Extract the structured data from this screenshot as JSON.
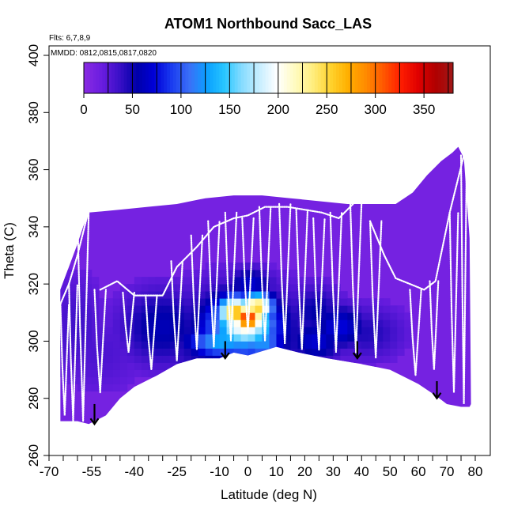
{
  "chart_data": {
    "type": "heatmap",
    "title": "ATOM1 Northbound Sacc_LAS",
    "annotations": {
      "flights": "Flts: 6,7,8,9",
      "dates": "MMDD: 0812,0815,0817,0820"
    },
    "xlabel": "Latitude (deg N)",
    "ylabel": "Theta (C)",
    "xlim": [
      -70,
      80
    ],
    "ylim": [
      260,
      400
    ],
    "x_ticks": [
      "-70",
      "-55",
      "-40",
      "-25",
      "-10",
      "0",
      "10",
      "20",
      "30",
      "40",
      "50",
      "60",
      "70",
      "80"
    ],
    "x_minor_ticks": [
      -65,
      -60,
      -50,
      -45,
      -35,
      -30,
      -20,
      -15,
      -5,
      5,
      15,
      25,
      35,
      45,
      55,
      65,
      75
    ],
    "y_ticks": [
      "260",
      "280",
      "300",
      "320",
      "340",
      "360",
      "380",
      "400"
    ],
    "colorbar": {
      "ticks": [
        "0",
        "50",
        "100",
        "150",
        "200",
        "250",
        "300",
        "350"
      ],
      "range": [
        0,
        380
      ],
      "colors": [
        "#8a2be2",
        "#6a1de0",
        "#3c10c8",
        "#0000a8",
        "#0000d8",
        "#1a3cf0",
        "#3b6ff7",
        "#0aa0ff",
        "#28c6ff",
        "#87dcff",
        "#c8eeff",
        "#ffffff",
        "#fffbc0",
        "#ffee80",
        "#ffd430",
        "#ffb000",
        "#ff8c00",
        "#ff5a00",
        "#ff1e00",
        "#e00000",
        "#b00000",
        "#a01818"
      ]
    },
    "background_value": 12,
    "lower_boundary": [
      [
        -66,
        272
      ],
      [
        -60,
        272
      ],
      [
        -56,
        271
      ],
      [
        -50,
        274
      ],
      [
        -45,
        280
      ],
      [
        -40,
        284
      ],
      [
        -32,
        288
      ],
      [
        -25,
        292
      ],
      [
        -18,
        294
      ],
      [
        -10,
        294
      ],
      [
        -5,
        296
      ],
      [
        0,
        295
      ],
      [
        10,
        298
      ],
      [
        18,
        296
      ],
      [
        28,
        294
      ],
      [
        40,
        292
      ],
      [
        50,
        290
      ],
      [
        60,
        285
      ],
      [
        66,
        281
      ],
      [
        70,
        278
      ],
      [
        75,
        277
      ],
      [
        78,
        277
      ]
    ],
    "upper_boundary": [
      [
        -66,
        318
      ],
      [
        -60,
        334
      ],
      [
        -58,
        340
      ],
      [
        -56,
        345
      ],
      [
        -45,
        346
      ],
      [
        -35,
        347
      ],
      [
        -25,
        348
      ],
      [
        -15,
        350
      ],
      [
        -5,
        351
      ],
      [
        5,
        351
      ],
      [
        15,
        350
      ],
      [
        25,
        349
      ],
      [
        35,
        348
      ],
      [
        45,
        348
      ],
      [
        52,
        348
      ],
      [
        58,
        352
      ],
      [
        63,
        358
      ],
      [
        68,
        363
      ],
      [
        72,
        366
      ],
      [
        74,
        368
      ],
      [
        76,
        364
      ],
      [
        78,
        336
      ],
      [
        78.5,
        278
      ]
    ],
    "hotspots": [
      {
        "lat": 0,
        "theta": 308,
        "value": 330,
        "w": 6,
        "h": 5
      },
      {
        "lat": -4,
        "theta": 310,
        "value": 270,
        "w": 7,
        "h": 6
      },
      {
        "lat": 3,
        "theta": 312,
        "value": 260,
        "w": 6,
        "h": 5
      },
      {
        "lat": -1,
        "theta": 306,
        "value": 215,
        "w": 11,
        "h": 9
      },
      {
        "lat": -2,
        "theta": 305,
        "value": 155,
        "w": 15,
        "h": 12
      },
      {
        "lat": -9,
        "theta": 300,
        "value": 135,
        "w": 13,
        "h": 6
      },
      {
        "lat": 5,
        "theta": 300,
        "value": 125,
        "w": 8,
        "h": 8
      },
      {
        "lat": 1,
        "theta": 320,
        "value": 70,
        "w": 8,
        "h": 6
      },
      {
        "lat": -3,
        "theta": 302,
        "value": 75,
        "w": 26,
        "h": 18
      },
      {
        "lat": -30,
        "theta": 305,
        "value": 60,
        "w": 16,
        "h": 14
      },
      {
        "lat": 24,
        "theta": 310,
        "value": 55,
        "w": 10,
        "h": 10
      },
      {
        "lat": 32,
        "theta": 305,
        "value": 75,
        "w": 10,
        "h": 8
      },
      {
        "lat": 24,
        "theta": 300,
        "value": 70,
        "w": 10,
        "h": 8
      },
      {
        "lat": 19,
        "theta": 314,
        "value": 35,
        "w": 8,
        "h": 6
      },
      {
        "lat": 42,
        "theta": 303,
        "value": 45,
        "w": 14,
        "h": 10
      },
      {
        "lat": -52,
        "theta": 296,
        "value": 30,
        "w": 18,
        "h": 16
      },
      {
        "lat": -60,
        "theta": 305,
        "value": 35,
        "w": 10,
        "h": 20
      }
    ],
    "flight_profiles": [
      {
        "lat_start": -66,
        "lat_end": -63,
        "theta_top": 313,
        "theta_bottom": 274
      },
      {
        "lat_start": -63,
        "lat_end": -60,
        "theta_top": 320,
        "theta_bottom": 272
      },
      {
        "lat_start": -60,
        "lat_end": -56,
        "theta_top": 346,
        "theta_bottom": 272
      },
      {
        "lat_start": -54,
        "lat_end": -50,
        "theta_top": 318,
        "theta_bottom": 282
      },
      {
        "lat_start": -44,
        "lat_end": -40,
        "theta_top": 317,
        "theta_bottom": 296
      },
      {
        "lat_start": -36,
        "lat_end": -32,
        "theta_top": 316,
        "theta_bottom": 290
      },
      {
        "lat_start": -27,
        "lat_end": -23,
        "theta_top": 328,
        "theta_bottom": 293
      },
      {
        "lat_start": -20,
        "lat_end": -16,
        "theta_top": 337,
        "theta_bottom": 297
      },
      {
        "lat_start": -14,
        "lat_end": -10,
        "theta_top": 342,
        "theta_bottom": 298
      },
      {
        "lat_start": -8,
        "lat_end": -4,
        "theta_top": 345,
        "theta_bottom": 300
      },
      {
        "lat_start": -2,
        "lat_end": 2,
        "theta_top": 343,
        "theta_bottom": 303
      },
      {
        "lat_start": 4,
        "lat_end": 8,
        "theta_top": 347,
        "theta_bottom": 300
      },
      {
        "lat_start": 11,
        "lat_end": 15,
        "theta_top": 348,
        "theta_bottom": 299
      },
      {
        "lat_start": 17,
        "lat_end": 21,
        "theta_top": 346,
        "theta_bottom": 297
      },
      {
        "lat_start": 23,
        "lat_end": 27,
        "theta_top": 343,
        "theta_bottom": 297
      },
      {
        "lat_start": 29,
        "lat_end": 33,
        "theta_top": 345,
        "theta_bottom": 296
      },
      {
        "lat_start": 36,
        "lat_end": 40,
        "theta_top": 349,
        "theta_bottom": 296
      },
      {
        "lat_start": 43,
        "lat_end": 47,
        "theta_top": 342,
        "theta_bottom": 294
      },
      {
        "lat_start": 57,
        "lat_end": 61,
        "theta_top": 318,
        "theta_bottom": 288
      },
      {
        "lat_start": 64,
        "lat_end": 67,
        "theta_top": 321,
        "theta_bottom": 290
      },
      {
        "lat_start": 71,
        "lat_end": 74,
        "theta_top": 345,
        "theta_bottom": 282
      },
      {
        "lat_start": 75,
        "lat_end": 77,
        "theta_top": 365,
        "theta_bottom": 278
      }
    ],
    "flight_lines": [
      [
        [
          -66,
          313
        ],
        [
          -63,
          320
        ],
        [
          -60,
          330
        ],
        [
          -56,
          346
        ]
      ],
      [
        [
          -52,
          318
        ],
        [
          -46,
          321
        ],
        [
          -40,
          316
        ],
        [
          -30,
          316
        ],
        [
          -25,
          326
        ],
        [
          -18,
          333
        ],
        [
          -12,
          340
        ],
        [
          -5,
          343
        ],
        [
          0,
          344
        ],
        [
          6,
          347
        ],
        [
          14,
          347
        ],
        [
          20,
          346
        ],
        [
          26,
          345
        ],
        [
          32,
          343
        ],
        [
          38,
          349
        ]
      ],
      [
        [
          43,
          342
        ],
        [
          48,
          330
        ],
        [
          52,
          322
        ],
        [
          57,
          320
        ],
        [
          62,
          318
        ],
        [
          66,
          321
        ],
        [
          71,
          345
        ],
        [
          76,
          365
        ]
      ]
    ],
    "arrows": [
      {
        "lat": -54,
        "theta_top": 278,
        "theta_bottom": 271
      },
      {
        "lat": -8,
        "theta_top": 300,
        "theta_bottom": 294
      },
      {
        "lat": 38.5,
        "theta_top": 300,
        "theta_bottom": 294
      },
      {
        "lat": 66.5,
        "theta_top": 286,
        "theta_bottom": 280
      }
    ],
    "grid": false,
    "legend": "colorbar-top-inside"
  }
}
